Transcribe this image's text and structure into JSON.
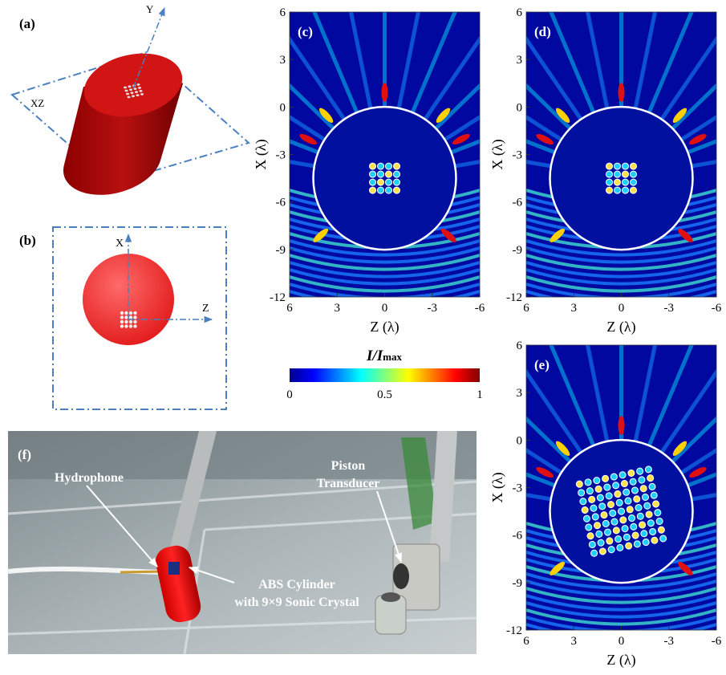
{
  "panels": {
    "a": {
      "label": "(a)",
      "axis_y": "Y",
      "plane": "XZ"
    },
    "b": {
      "label": "(b)",
      "axis_x": "X",
      "axis_z": "Z"
    },
    "c": {
      "label": "(c)"
    },
    "d": {
      "label": "(d)"
    },
    "e": {
      "label": "(e)"
    },
    "f": {
      "label": "(f)",
      "hydrophone": "Hydrophone",
      "transducer": [
        "Piston",
        "Transducer"
      ],
      "cylinder": [
        "ABS Cylinder",
        "with 9×9 Sonic Crystal"
      ]
    }
  },
  "field_axes": {
    "x_label": "Z (λ)",
    "y_label": "X (λ)",
    "x_ticks": [
      "6",
      "3",
      "0",
      "-3",
      "-6"
    ],
    "y_ticks": [
      "6",
      "3",
      "0",
      "-3",
      "-6",
      "-9",
      "-12"
    ]
  },
  "colorbar": {
    "title": "I/I",
    "title_sub": "max",
    "ticks": [
      "0",
      "0.5",
      "1"
    ]
  }
}
